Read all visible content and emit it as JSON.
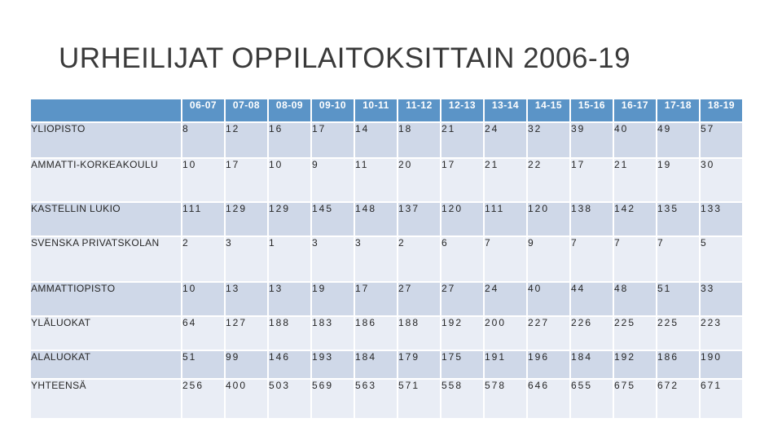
{
  "slide": {
    "title": "URHEILIJAT OPPILAITOKSITTAIN 2006-19"
  },
  "chart_data": {
    "type": "table",
    "title": "URHEILIJAT OPPILAITOKSITTAIN 2006-19",
    "corner_label": "",
    "categories": [
      "06-07",
      "07-08",
      "08-09",
      "09-10",
      "10-11",
      "11-12",
      "12-13",
      "13-14",
      "14-15",
      "15-16",
      "16-17",
      "17-18",
      "18-19"
    ],
    "series": [
      {
        "name": "YLIOPISTO",
        "values": [
          8,
          12,
          16,
          17,
          14,
          18,
          21,
          24,
          32,
          39,
          40,
          49,
          57
        ]
      },
      {
        "name": "AMMATTI-KORKEAKOULU",
        "values": [
          10,
          17,
          10,
          9,
          11,
          20,
          17,
          21,
          22,
          17,
          21,
          19,
          30
        ]
      },
      {
        "name": "KASTELLIN LUKIO",
        "values": [
          111,
          129,
          129,
          145,
          148,
          137,
          120,
          111,
          120,
          138,
          142,
          135,
          133
        ]
      },
      {
        "name": "SVENSKA PRIVATSKOLAN",
        "values": [
          2,
          3,
          1,
          3,
          3,
          2,
          6,
          7,
          9,
          7,
          7,
          7,
          5
        ]
      },
      {
        "name": "AMMATTIOPISTO",
        "values": [
          10,
          13,
          13,
          19,
          17,
          27,
          27,
          24,
          40,
          44,
          48,
          51,
          33
        ]
      },
      {
        "name": "YLÄLUOKAT",
        "values": [
          64,
          127,
          188,
          183,
          186,
          188,
          192,
          200,
          227,
          226,
          225,
          225,
          223
        ]
      },
      {
        "name": "ALALUOKAT",
        "values": [
          51,
          99,
          146,
          193,
          184,
          179,
          175,
          191,
          196,
          184,
          192,
          186,
          190
        ]
      },
      {
        "name": "YHTEENSÄ",
        "values": [
          256,
          400,
          503,
          569,
          563,
          571,
          558,
          578,
          646,
          655,
          675,
          672,
          671
        ]
      }
    ],
    "layout": {
      "banded_rows": true,
      "header_position": "top"
    }
  },
  "colors": {
    "header_bg": "#5B94C7",
    "header_text": "#FFFFFF",
    "band_dark": "#CFD8E8",
    "band_light": "#E9EDF5",
    "cell_text": "#262626",
    "title_text": "#3A3A3A",
    "background": "#FFFFFF"
  }
}
